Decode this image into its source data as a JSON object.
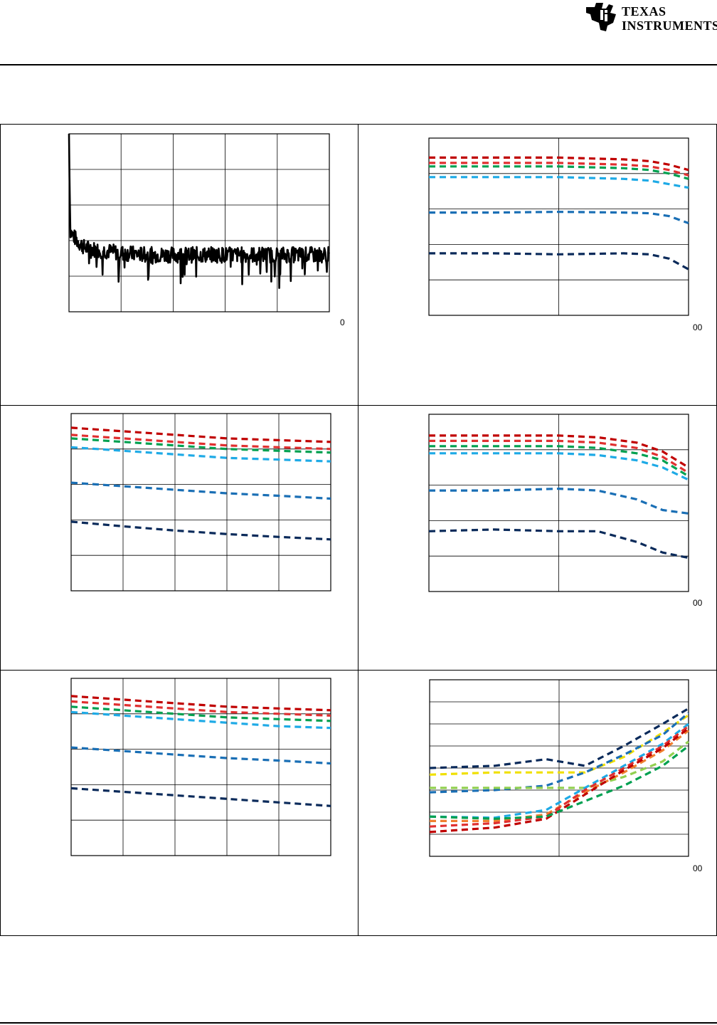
{
  "header": {
    "brand_line1": "TEXAS",
    "brand_line2": "INSTRUMENTS",
    "logo_icon": "ti-logo-icon"
  },
  "chart_data": [
    {
      "id": "c1",
      "type": "line",
      "grid": true,
      "xlim": [
        0,
        10
      ],
      "ylim": [
        0,
        5
      ],
      "x_tick_labels": [],
      "x_edge_label": "0",
      "series": [
        {
          "color": "#000000",
          "style": "solid",
          "noise": true,
          "x": [
            0,
            0.05,
            0.1,
            0.3,
            0.6,
            1,
            2,
            3,
            4,
            5,
            6,
            7,
            8,
            9,
            10
          ],
          "y": [
            5,
            2.3,
            2.2,
            2.0,
            1.8,
            1.75,
            1.65,
            1.6,
            1.6,
            1.6,
            1.6,
            1.6,
            1.6,
            1.6,
            1.6
          ]
        }
      ]
    },
    {
      "id": "c2",
      "type": "line",
      "grid": true,
      "xlim": [
        0,
        2
      ],
      "ylim": [
        0,
        5
      ],
      "x_tick_labels": [],
      "x_edge_label": "00",
      "series": [
        {
          "color": "#c00000",
          "style": "dashed",
          "x": [
            0,
            0.5,
            1,
            1.5,
            1.7,
            1.85,
            2
          ],
          "y": [
            4.45,
            4.45,
            4.45,
            4.4,
            4.35,
            4.25,
            4.1
          ]
        },
        {
          "color": "#e03030",
          "style": "dashed",
          "x": [
            0,
            0.5,
            1,
            1.5,
            1.7,
            1.85,
            2
          ],
          "y": [
            4.3,
            4.3,
            4.3,
            4.25,
            4.2,
            4.1,
            3.95
          ]
        },
        {
          "color": "#00a050",
          "style": "dashed",
          "x": [
            0,
            0.5,
            1,
            1.5,
            1.7,
            1.85,
            2
          ],
          "y": [
            4.2,
            4.2,
            4.2,
            4.15,
            4.1,
            4.0,
            3.85
          ]
        },
        {
          "color": "#1eaae6",
          "style": "dashed",
          "x": [
            0,
            0.5,
            1,
            1.5,
            1.7,
            1.85,
            2
          ],
          "y": [
            3.9,
            3.9,
            3.9,
            3.85,
            3.8,
            3.7,
            3.6
          ]
        },
        {
          "color": "#1a6fb5",
          "style": "dashed",
          "x": [
            0,
            0.5,
            1,
            1.5,
            1.7,
            1.85,
            2
          ],
          "y": [
            2.9,
            2.9,
            2.92,
            2.9,
            2.88,
            2.8,
            2.6
          ]
        },
        {
          "color": "#0a2a5a",
          "style": "dashed",
          "x": [
            0,
            0.5,
            1,
            1.5,
            1.7,
            1.85,
            2
          ],
          "y": [
            1.75,
            1.75,
            1.72,
            1.75,
            1.72,
            1.6,
            1.3
          ]
        }
      ]
    },
    {
      "id": "c3",
      "type": "line",
      "grid": true,
      "xlim": [
        0,
        5
      ],
      "ylim": [
        0,
        5
      ],
      "x_tick_labels": [],
      "x_edge_label": "",
      "series": [
        {
          "color": "#c00000",
          "style": "dashed",
          "x": [
            0,
            1,
            2,
            3,
            4,
            5
          ],
          "y": [
            4.6,
            4.5,
            4.4,
            4.3,
            4.25,
            4.2
          ]
        },
        {
          "color": "#e03030",
          "style": "dashed",
          "x": [
            0,
            1,
            2,
            3,
            4,
            5
          ],
          "y": [
            4.4,
            4.3,
            4.2,
            4.1,
            4.05,
            4.0
          ]
        },
        {
          "color": "#00a050",
          "style": "dashed",
          "x": [
            0,
            1,
            2,
            3,
            4,
            5
          ],
          "y": [
            4.3,
            4.2,
            4.1,
            4.0,
            3.95,
            3.9
          ]
        },
        {
          "color": "#1eaae6",
          "style": "dashed",
          "x": [
            0,
            1,
            2,
            3,
            4,
            5
          ],
          "y": [
            4.05,
            3.95,
            3.85,
            3.75,
            3.7,
            3.65
          ]
        },
        {
          "color": "#1a6fb5",
          "style": "dashed",
          "x": [
            0,
            1,
            2,
            3,
            4,
            5
          ],
          "y": [
            3.05,
            2.95,
            2.85,
            2.75,
            2.68,
            2.6
          ]
        },
        {
          "color": "#0a2a5a",
          "style": "dashed",
          "x": [
            0,
            1,
            2,
            3,
            4,
            5
          ],
          "y": [
            1.95,
            1.82,
            1.7,
            1.6,
            1.52,
            1.45
          ]
        }
      ]
    },
    {
      "id": "c4",
      "type": "line",
      "grid": true,
      "xlim": [
        0,
        2
      ],
      "ylim": [
        0,
        5
      ],
      "x_tick_labels": [],
      "x_edge_label": "00",
      "series": [
        {
          "color": "#c00000",
          "style": "dashed",
          "x": [
            0,
            0.5,
            1,
            1.3,
            1.6,
            1.8,
            2
          ],
          "y": [
            4.4,
            4.4,
            4.4,
            4.35,
            4.2,
            3.95,
            3.5
          ]
        },
        {
          "color": "#e03030",
          "style": "dashed",
          "x": [
            0,
            0.5,
            1,
            1.3,
            1.6,
            1.8,
            2
          ],
          "y": [
            4.25,
            4.25,
            4.25,
            4.2,
            4.05,
            3.8,
            3.35
          ]
        },
        {
          "color": "#00a050",
          "style": "dashed",
          "x": [
            0,
            0.5,
            1,
            1.3,
            1.6,
            1.8,
            2
          ],
          "y": [
            4.1,
            4.1,
            4.1,
            4.05,
            3.9,
            3.7,
            3.25
          ]
        },
        {
          "color": "#1eaae6",
          "style": "dashed",
          "x": [
            0,
            0.5,
            1,
            1.3,
            1.6,
            1.8,
            2
          ],
          "y": [
            3.9,
            3.9,
            3.9,
            3.85,
            3.7,
            3.5,
            3.15
          ]
        },
        {
          "color": "#1a6fb5",
          "style": "dashed",
          "x": [
            0,
            0.5,
            1,
            1.3,
            1.6,
            1.8,
            2
          ],
          "y": [
            2.85,
            2.85,
            2.9,
            2.85,
            2.6,
            2.3,
            2.2
          ]
        },
        {
          "color": "#0a2a5a",
          "style": "dashed",
          "x": [
            0,
            0.5,
            1,
            1.3,
            1.6,
            1.8,
            2
          ],
          "y": [
            1.7,
            1.75,
            1.7,
            1.7,
            1.4,
            1.1,
            0.95
          ]
        }
      ]
    },
    {
      "id": "c5",
      "type": "line",
      "grid": true,
      "xlim": [
        0,
        5
      ],
      "ylim": [
        0,
        5
      ],
      "x_tick_labels": [],
      "x_edge_label": "",
      "series": [
        {
          "color": "#c00000",
          "style": "dashed",
          "x": [
            0,
            1,
            2,
            3,
            4,
            5
          ],
          "y": [
            4.5,
            4.4,
            4.3,
            4.2,
            4.15,
            4.1
          ]
        },
        {
          "color": "#e03030",
          "style": "dashed",
          "x": [
            0,
            1,
            2,
            3,
            4,
            5
          ],
          "y": [
            4.35,
            4.25,
            4.15,
            4.05,
            4.0,
            3.95
          ]
        },
        {
          "color": "#00a050",
          "style": "dashed",
          "x": [
            0,
            1,
            2,
            3,
            4,
            5
          ],
          "y": [
            4.2,
            4.1,
            4.0,
            3.9,
            3.85,
            3.8
          ]
        },
        {
          "color": "#1eaae6",
          "style": "dashed",
          "x": [
            0,
            1,
            2,
            3,
            4,
            5
          ],
          "y": [
            4.05,
            3.95,
            3.85,
            3.75,
            3.65,
            3.6
          ]
        },
        {
          "color": "#1a6fb5",
          "style": "dashed",
          "x": [
            0,
            1,
            2,
            3,
            4,
            5
          ],
          "y": [
            3.05,
            2.95,
            2.85,
            2.75,
            2.68,
            2.6
          ]
        },
        {
          "color": "#0a2a5a",
          "style": "dashed",
          "x": [
            0,
            1,
            2,
            3,
            4,
            5
          ],
          "y": [
            1.9,
            1.8,
            1.7,
            1.6,
            1.5,
            1.4
          ]
        }
      ]
    },
    {
      "id": "c6",
      "type": "line",
      "grid": true,
      "xlim": [
        0,
        2
      ],
      "ylim": [
        0,
        8
      ],
      "x_tick_labels": [],
      "x_edge_label": "00",
      "series": [
        {
          "color": "#0a2a5a",
          "style": "dashed",
          "x": [
            0,
            0.5,
            0.9,
            1.2,
            1.5,
            1.8,
            2
          ],
          "y": [
            4.0,
            4.1,
            4.4,
            4.1,
            5.0,
            6.0,
            6.7
          ]
        },
        {
          "color": "#f0e000",
          "style": "dashed",
          "x": [
            0,
            0.5,
            0.9,
            1.2,
            1.5,
            1.8,
            2
          ],
          "y": [
            3.7,
            3.8,
            3.8,
            3.8,
            4.5,
            5.6,
            6.4
          ]
        },
        {
          "color": "#1a6fb5",
          "style": "dashed",
          "x": [
            0,
            0.5,
            0.9,
            1.2,
            1.5,
            1.8,
            2
          ],
          "y": [
            2.9,
            3.0,
            3.2,
            3.8,
            4.6,
            5.5,
            6.5
          ]
        },
        {
          "color": "#92d050",
          "style": "dashed",
          "x": [
            0,
            0.5,
            0.9,
            1.2,
            1.5,
            1.8,
            2
          ],
          "y": [
            3.1,
            3.1,
            3.1,
            3.1,
            3.6,
            4.3,
            5.2
          ]
        },
        {
          "color": "#1eaae6",
          "style": "dashed",
          "x": [
            0,
            0.5,
            0.9,
            1.2,
            1.5,
            1.8,
            2
          ],
          "y": [
            1.8,
            1.75,
            2.1,
            3.1,
            4.1,
            5.1,
            6.0
          ]
        },
        {
          "color": "#f08030",
          "style": "dashed",
          "x": [
            0,
            0.5,
            0.9,
            1.2,
            1.5,
            1.8,
            2
          ],
          "y": [
            1.6,
            1.6,
            1.9,
            2.9,
            3.8,
            4.8,
            5.7
          ]
        },
        {
          "color": "#e03030",
          "style": "dashed",
          "x": [
            0,
            0.5,
            0.9,
            1.2,
            1.5,
            1.8,
            2
          ],
          "y": [
            1.35,
            1.5,
            1.8,
            3.0,
            4.0,
            5.0,
            5.9
          ]
        },
        {
          "color": "#c00000",
          "style": "dashed",
          "x": [
            0,
            0.5,
            0.9,
            1.2,
            1.5,
            1.8,
            2
          ],
          "y": [
            1.1,
            1.3,
            1.7,
            2.8,
            3.9,
            4.9,
            5.8
          ]
        },
        {
          "color": "#00a050",
          "style": "dashed",
          "x": [
            0,
            0.5,
            0.9,
            1.2,
            1.5,
            1.8,
            2
          ],
          "y": [
            1.8,
            1.7,
            1.8,
            2.5,
            3.2,
            4.1,
            5.0
          ]
        }
      ]
    }
  ]
}
